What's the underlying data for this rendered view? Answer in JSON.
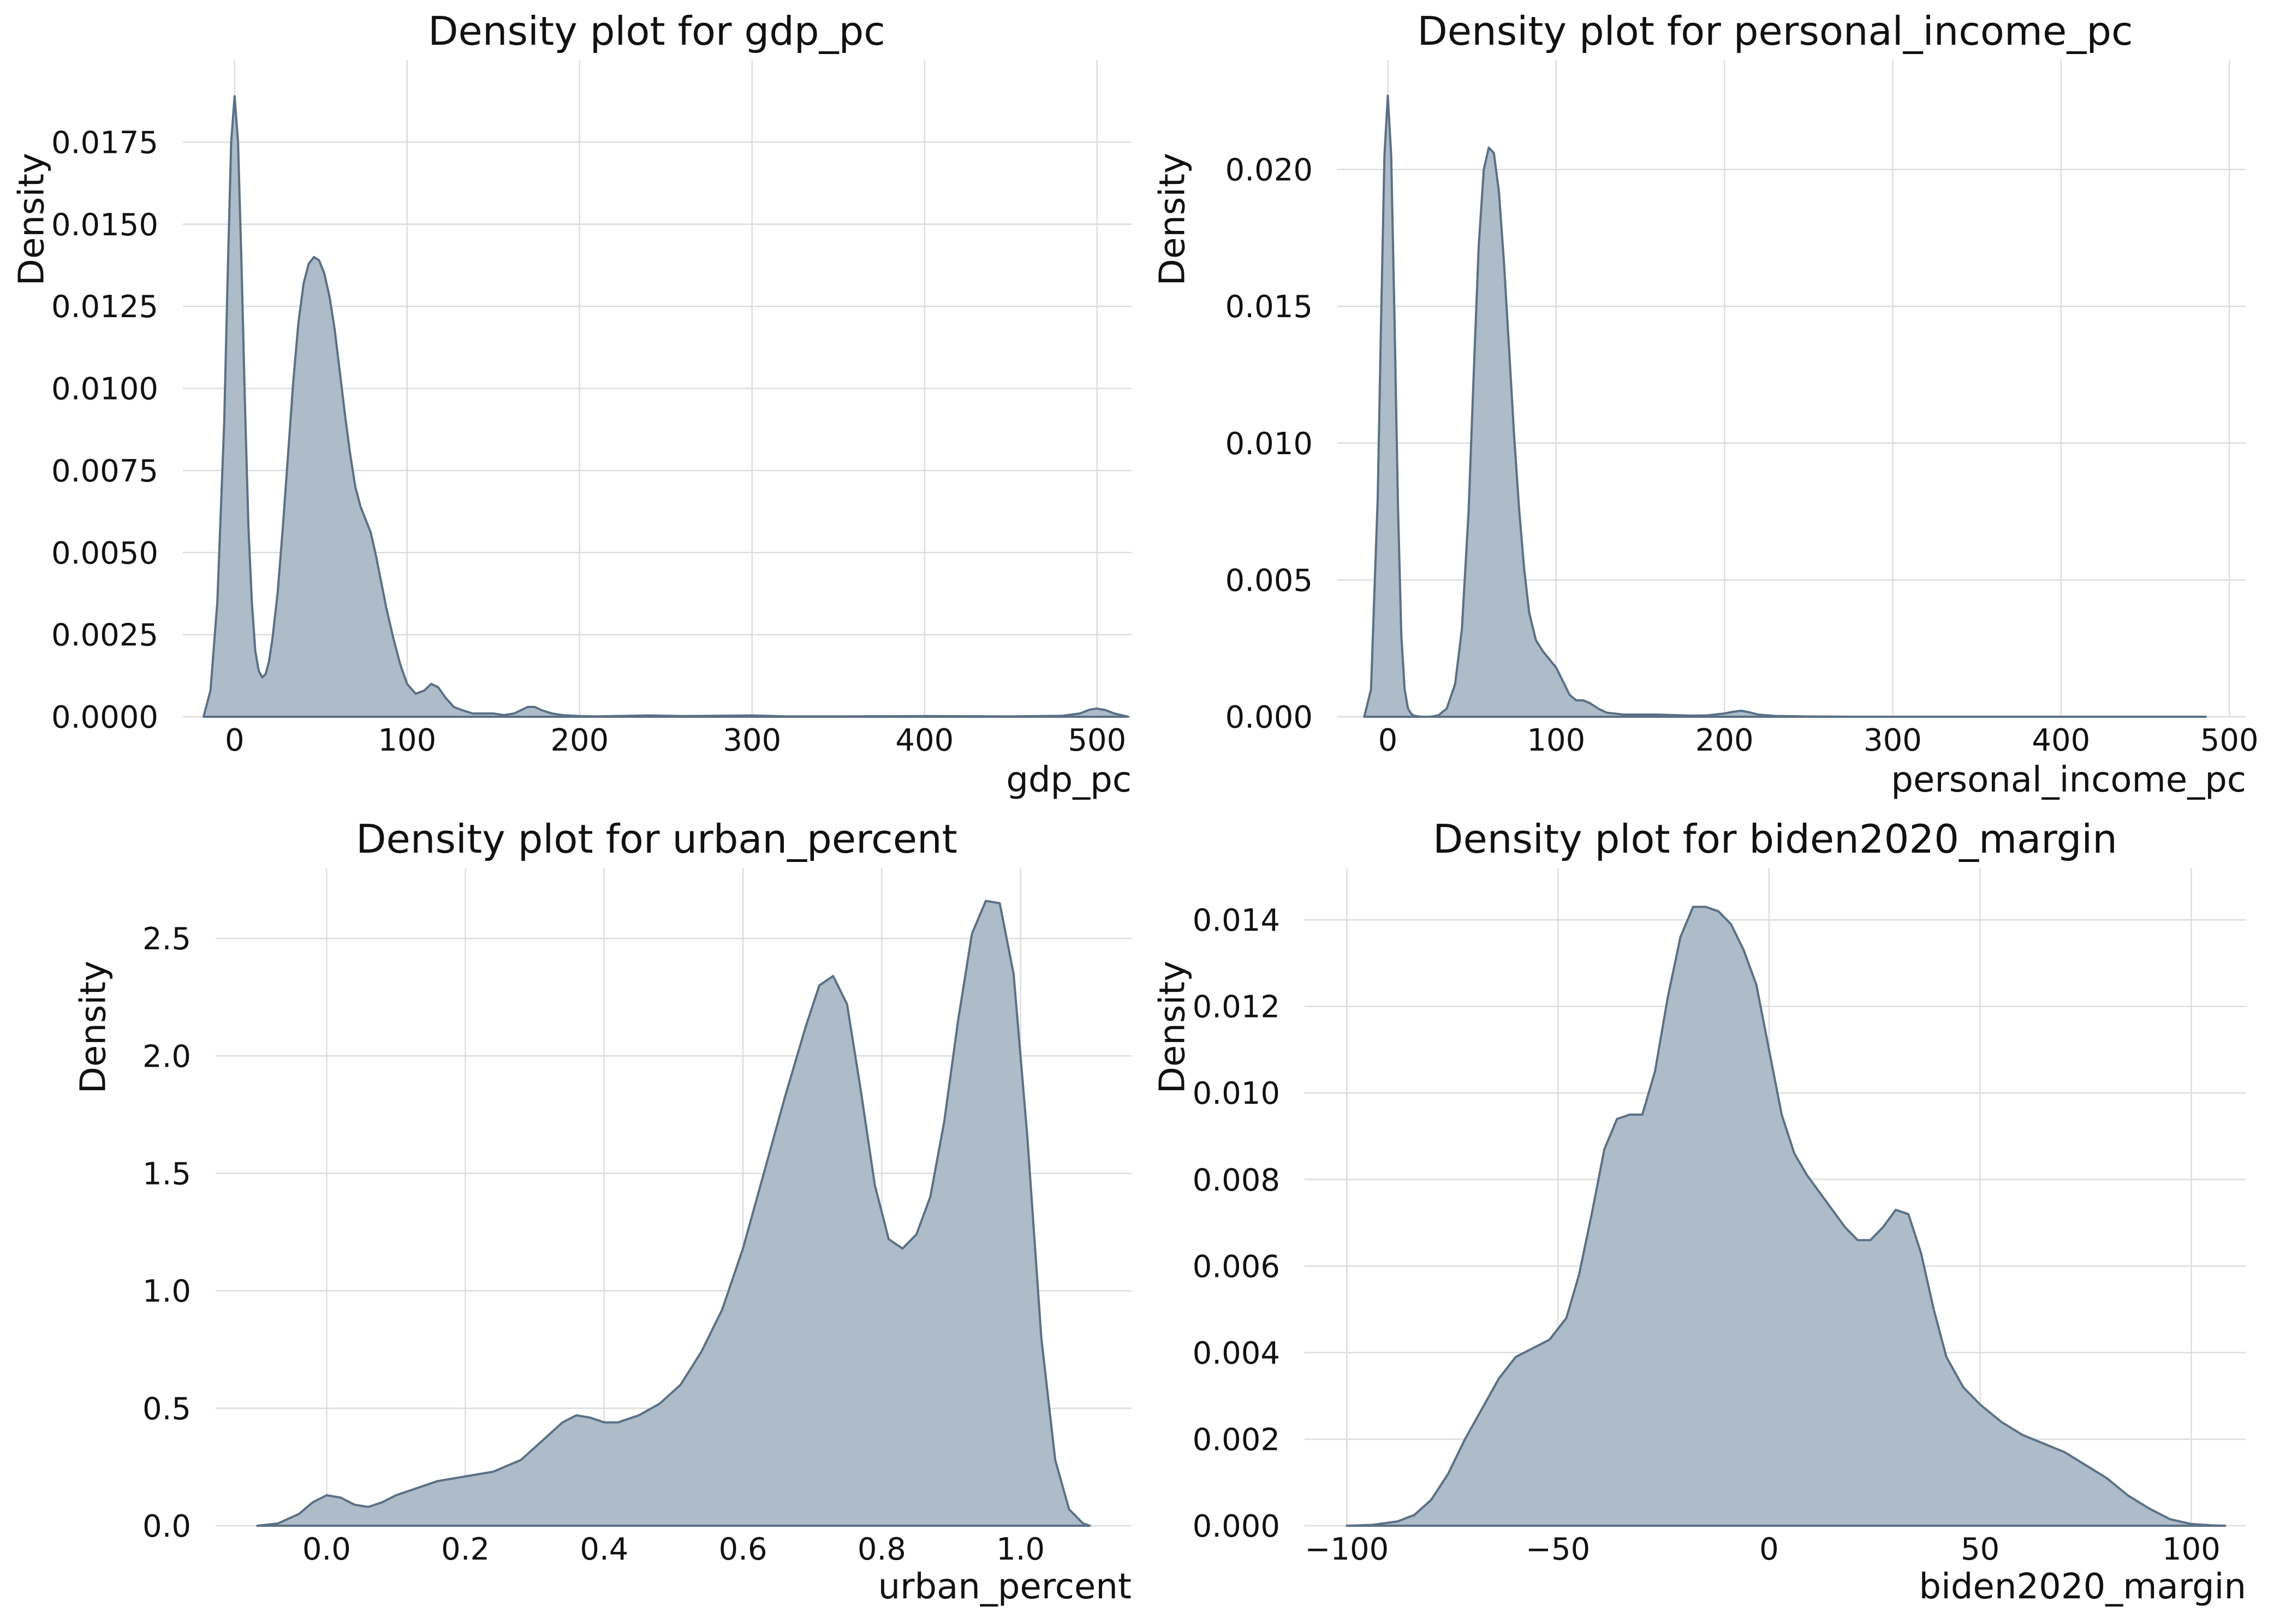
{
  "style": {
    "fill_color": "#aebbc8",
    "line_color": "#5a7085",
    "grid_color": "#dddddd",
    "text_color": "#111111"
  },
  "chart_data": [
    {
      "type": "area",
      "title": "Density plot for gdp_pc",
      "xlabel": "gdp_pc",
      "ylabel": "Density",
      "grid": true,
      "xlim": [
        -30,
        520
      ],
      "ylim": [
        0,
        0.02
      ],
      "xticks": [
        0,
        100,
        200,
        300,
        400,
        500
      ],
      "xtick_labels": [
        "0",
        "100",
        "200",
        "300",
        "400",
        "500"
      ],
      "yticks": [
        0,
        0.0025,
        0.005,
        0.0075,
        0.01,
        0.0125,
        0.015,
        0.0175
      ],
      "ytick_labels": [
        "0.0000",
        "0.0025",
        "0.0050",
        "0.0075",
        "0.0100",
        "0.0125",
        "0.0150",
        "0.0175"
      ],
      "x": [
        -18,
        -14,
        -10,
        -6,
        -4,
        -2,
        0,
        2,
        4,
        6,
        8,
        10,
        12,
        14,
        16,
        18,
        20,
        22,
        25,
        28,
        31,
        34,
        37,
        40,
        43,
        46,
        49,
        52,
        55,
        58,
        61,
        64,
        67,
        70,
        73,
        76,
        79,
        82,
        85,
        88,
        92,
        96,
        100,
        105,
        110,
        114,
        118,
        122,
        127,
        132,
        138,
        144,
        150,
        156,
        162,
        166,
        170,
        174,
        178,
        184,
        190,
        200,
        210,
        220,
        240,
        260,
        280,
        300,
        320,
        350,
        400,
        450,
        480,
        490,
        496,
        500,
        505,
        510,
        518
      ],
      "y": [
        0,
        0.0008,
        0.0035,
        0.009,
        0.0135,
        0.0175,
        0.0189,
        0.0175,
        0.0138,
        0.0095,
        0.0058,
        0.0035,
        0.002,
        0.0014,
        0.0012,
        0.0013,
        0.0017,
        0.0024,
        0.0038,
        0.0058,
        0.008,
        0.0102,
        0.012,
        0.0132,
        0.0138,
        0.014,
        0.0139,
        0.0135,
        0.0128,
        0.0118,
        0.0105,
        0.0092,
        0.008,
        0.007,
        0.0064,
        0.006,
        0.0056,
        0.0049,
        0.0041,
        0.0033,
        0.0024,
        0.0016,
        0.001,
        0.0007,
        0.0008,
        0.001,
        0.0009,
        0.0006,
        0.0003,
        0.0002,
        0.0001,
        0.0001,
        0.0001,
        5e-05,
        0.0001,
        0.0002,
        0.0003,
        0.0003,
        0.0002,
        0.0001,
        5e-05,
        2e-05,
        1e-05,
        2e-05,
        4e-05,
        2e-05,
        3e-05,
        4e-05,
        1e-05,
        1e-05,
        2e-05,
        1e-05,
        3e-05,
        0.0001,
        0.00022,
        0.00025,
        0.0002,
        0.0001,
        0
      ]
    },
    {
      "type": "area",
      "title": "Density plot for personal_income_pc",
      "xlabel": "personal_income_pc",
      "ylabel": "Density",
      "grid": true,
      "xlim": [
        -30,
        510
      ],
      "ylim": [
        0,
        0.024
      ],
      "xticks": [
        0,
        100,
        200,
        300,
        400,
        500
      ],
      "xtick_labels": [
        "0",
        "100",
        "200",
        "300",
        "400",
        "500"
      ],
      "yticks": [
        0,
        0.005,
        0.01,
        0.015,
        0.02
      ],
      "ytick_labels": [
        "0.000",
        "0.005",
        "0.010",
        "0.015",
        "0.020"
      ],
      "x": [
        -14,
        -10,
        -6,
        -4,
        -2,
        0,
        2,
        4,
        6,
        8,
        10,
        12,
        14,
        16,
        20,
        25,
        30,
        35,
        40,
        44,
        48,
        51,
        54,
        57,
        60,
        63,
        66,
        69,
        72,
        75,
        78,
        81,
        84,
        88,
        92,
        96,
        100,
        104,
        108,
        112,
        116,
        120,
        125,
        130,
        140,
        150,
        160,
        170,
        180,
        190,
        200,
        205,
        210,
        215,
        220,
        230,
        250,
        280,
        320,
        360,
        400,
        440,
        480,
        486
      ],
      "y": [
        0,
        0.001,
        0.008,
        0.0145,
        0.0205,
        0.0227,
        0.0205,
        0.0145,
        0.0078,
        0.003,
        0.001,
        0.0003,
        0.0001,
        3e-05,
        0,
        0,
        5e-05,
        0.0003,
        0.0012,
        0.0032,
        0.0075,
        0.0125,
        0.0172,
        0.02,
        0.0208,
        0.0206,
        0.0192,
        0.0166,
        0.0135,
        0.0103,
        0.0076,
        0.0054,
        0.0038,
        0.0028,
        0.0024,
        0.0021,
        0.0018,
        0.0013,
        0.0008,
        0.0006,
        0.0006,
        0.0005,
        0.0003,
        0.00015,
        8e-05,
        8e-05,
        8e-05,
        6e-05,
        4e-05,
        5e-05,
        0.00012,
        0.00018,
        0.00022,
        0.00016,
        8e-05,
        3e-05,
        1e-05,
        0,
        0,
        0,
        0,
        0,
        0,
        0
      ]
    },
    {
      "type": "area",
      "title": "Density plot for urban_percent",
      "xlabel": "urban_percent",
      "ylabel": "Density",
      "grid": true,
      "xlim": [
        -0.16,
        1.16
      ],
      "ylim": [
        0,
        2.8
      ],
      "xticks": [
        0,
        0.2,
        0.4,
        0.6,
        0.8,
        1.0
      ],
      "xtick_labels": [
        "0.0",
        "0.2",
        "0.4",
        "0.6",
        "0.8",
        "1.0"
      ],
      "yticks": [
        0,
        0.5,
        1.0,
        1.5,
        2.0,
        2.5
      ],
      "ytick_labels": [
        "0.0",
        "0.5",
        "1.0",
        "1.5",
        "2.0",
        "2.5"
      ],
      "x": [
        -0.1,
        -0.07,
        -0.04,
        -0.02,
        0,
        0.02,
        0.04,
        0.06,
        0.08,
        0.1,
        0.13,
        0.16,
        0.2,
        0.24,
        0.28,
        0.31,
        0.34,
        0.36,
        0.38,
        0.4,
        0.42,
        0.45,
        0.48,
        0.51,
        0.54,
        0.57,
        0.6,
        0.63,
        0.66,
        0.69,
        0.71,
        0.73,
        0.75,
        0.77,
        0.79,
        0.81,
        0.83,
        0.85,
        0.87,
        0.89,
        0.91,
        0.93,
        0.95,
        0.97,
        0.99,
        1.01,
        1.03,
        1.05,
        1.07,
        1.09,
        1.1
      ],
      "y": [
        0,
        0.01,
        0.05,
        0.1,
        0.13,
        0.12,
        0.09,
        0.08,
        0.1,
        0.13,
        0.16,
        0.19,
        0.21,
        0.23,
        0.28,
        0.36,
        0.44,
        0.47,
        0.46,
        0.44,
        0.44,
        0.47,
        0.52,
        0.6,
        0.74,
        0.92,
        1.18,
        1.5,
        1.82,
        2.12,
        2.3,
        2.34,
        2.22,
        1.85,
        1.45,
        1.22,
        1.18,
        1.24,
        1.4,
        1.72,
        2.15,
        2.52,
        2.66,
        2.65,
        2.35,
        1.65,
        0.8,
        0.28,
        0.07,
        0.01,
        0
      ]
    },
    {
      "type": "area",
      "title": "Density plot for biden2020_margin",
      "xlabel": "biden2020_margin",
      "ylabel": "Density",
      "grid": true,
      "xlim": [
        -110,
        113
      ],
      "ylim": [
        0,
        0.0152
      ],
      "xticks": [
        -100,
        -50,
        0,
        50,
        100
      ],
      "xtick_labels": [
        "−100",
        "−50",
        "0",
        "50",
        "100"
      ],
      "yticks": [
        0,
        0.002,
        0.004,
        0.006,
        0.008,
        0.01,
        0.012,
        0.014
      ],
      "ytick_labels": [
        "0.000",
        "0.002",
        "0.004",
        "0.006",
        "0.008",
        "0.010",
        "0.012",
        "0.014"
      ],
      "x": [
        -100,
        -94,
        -88,
        -84,
        -80,
        -76,
        -72,
        -68,
        -64,
        -60,
        -56,
        -52,
        -48,
        -45,
        -42,
        -39,
        -36,
        -33,
        -30,
        -27,
        -24,
        -21,
        -18,
        -15,
        -12,
        -9,
        -6,
        -3,
        0,
        3,
        6,
        9,
        12,
        15,
        18,
        21,
        24,
        27,
        30,
        33,
        36,
        39,
        42,
        46,
        50,
        55,
        60,
        65,
        70,
        75,
        80,
        85,
        90,
        95,
        100,
        105,
        108
      ],
      "y": [
        0,
        2e-05,
        0.0001,
        0.00025,
        0.0006,
        0.0012,
        0.002,
        0.0027,
        0.0034,
        0.0039,
        0.0041,
        0.0043,
        0.0048,
        0.0058,
        0.0072,
        0.0087,
        0.0094,
        0.0095,
        0.0095,
        0.0105,
        0.0122,
        0.0136,
        0.0143,
        0.0143,
        0.0142,
        0.0139,
        0.0133,
        0.0125,
        0.011,
        0.0095,
        0.0086,
        0.0081,
        0.0077,
        0.0073,
        0.0069,
        0.0066,
        0.0066,
        0.0069,
        0.0073,
        0.0072,
        0.0063,
        0.005,
        0.0039,
        0.0032,
        0.0028,
        0.0024,
        0.0021,
        0.0019,
        0.0017,
        0.0014,
        0.0011,
        0.0007,
        0.0004,
        0.00015,
        4e-05,
        1e-05,
        0
      ]
    }
  ]
}
